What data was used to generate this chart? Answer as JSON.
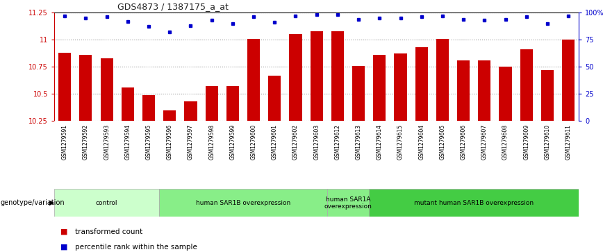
{
  "title": "GDS4873 / 1387175_a_at",
  "samples": [
    "GSM1279591",
    "GSM1279592",
    "GSM1279593",
    "GSM1279594",
    "GSM1279595",
    "GSM1279596",
    "GSM1279597",
    "GSM1279598",
    "GSM1279599",
    "GSM1279600",
    "GSM1279601",
    "GSM1279602",
    "GSM1279603",
    "GSM1279612",
    "GSM1279613",
    "GSM1279614",
    "GSM1279615",
    "GSM1279604",
    "GSM1279605",
    "GSM1279606",
    "GSM1279607",
    "GSM1279608",
    "GSM1279609",
    "GSM1279610",
    "GSM1279611"
  ],
  "bar_values": [
    10.88,
    10.86,
    10.83,
    10.56,
    10.49,
    10.35,
    10.43,
    10.57,
    10.57,
    11.01,
    10.67,
    11.05,
    11.08,
    11.08,
    10.76,
    10.86,
    10.87,
    10.93,
    11.01,
    10.81,
    10.81,
    10.75,
    10.91,
    10.72,
    11.0
  ],
  "percentile_values": [
    97,
    95,
    96,
    92,
    87,
    82,
    88,
    93,
    90,
    96,
    91,
    97,
    98,
    98,
    94,
    95,
    95,
    96,
    97,
    94,
    93,
    94,
    96,
    90,
    97
  ],
  "ymin": 10.25,
  "ymax": 11.25,
  "yticks": [
    10.25,
    10.5,
    10.75,
    11.0,
    11.25
  ],
  "ytick_labels": [
    "10.25",
    "10.5",
    "10.75",
    "11",
    "11.25"
  ],
  "y2ticks": [
    0,
    25,
    50,
    75,
    100
  ],
  "y2tick_labels": [
    "0",
    "25",
    "50",
    "75",
    "100%"
  ],
  "bar_color": "#cc0000",
  "dot_color": "#0000cc",
  "groups": [
    {
      "label": "control",
      "start": 0,
      "end": 5,
      "color": "#ccffcc"
    },
    {
      "label": "human SAR1B overexpression",
      "start": 5,
      "end": 13,
      "color": "#88ee88"
    },
    {
      "label": "human SAR1A\noverexpression",
      "start": 13,
      "end": 15,
      "color": "#88ee88"
    },
    {
      "label": "mutant human SAR1B overexpression",
      "start": 15,
      "end": 25,
      "color": "#44cc44"
    }
  ],
  "group_colors": [
    "#ccffcc",
    "#88ee88",
    "#88ee88",
    "#44cc44"
  ],
  "legend_red_label": "transformed count",
  "legend_blue_label": "percentile rank within the sample",
  "genotype_label": "genotype/variation",
  "tick_bg_color": "#cccccc",
  "spine_color": "#999999"
}
